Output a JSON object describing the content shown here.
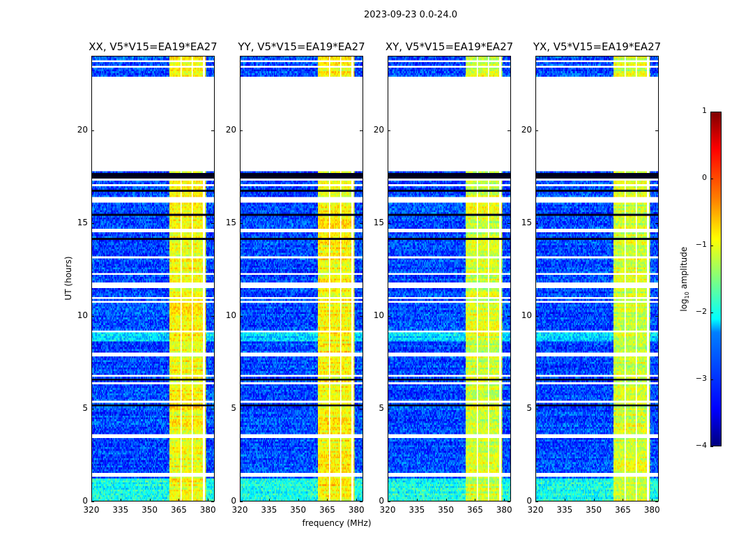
{
  "chart_data": {
    "type": "heatmap",
    "title": "2023-09-23 0.0-24.0",
    "xlabel": "frequency (MHz)",
    "ylabel": "UT (hours)",
    "xlim": [
      320,
      383.5
    ],
    "ylim": [
      0,
      24
    ],
    "xticks": [
      "320",
      "335",
      "350",
      "365",
      "380"
    ],
    "xtick_values": [
      320,
      335,
      350,
      365,
      380
    ],
    "yticks": [
      "0",
      "5",
      "10",
      "15",
      "20"
    ],
    "ytick_values": [
      0,
      5,
      10,
      15,
      20
    ],
    "panels": [
      {
        "title": "XX, V5*V15=EA19*EA27",
        "band_level": -0.9
      },
      {
        "title": "YY, V5*V15=EA19*EA27",
        "band_level": -0.85
      },
      {
        "title": "XY, V5*V15=EA19*EA27",
        "band_level": -1.1
      },
      {
        "title": "YX, V5*V15=EA19*EA27",
        "band_level": -1.1
      }
    ],
    "bright_band_mhz": [
      360,
      379.5
    ],
    "background_level": -3.2,
    "flagged_hours": [
      [
        17.8,
        22.9
      ],
      [
        16.1,
        16.4
      ],
      [
        14.5,
        14.7
      ],
      [
        11.5,
        11.8
      ],
      [
        1.3,
        1.5
      ],
      [
        3.4,
        3.55
      ],
      [
        23.4,
        23.5
      ],
      [
        7.9,
        8.0
      ]
    ],
    "colorbar": {
      "label": "log10 amplitude",
      "label_main": "log",
      "label_sub": "10",
      "label_tail": " amplitude",
      "ticks": [
        "1",
        "0",
        "−1",
        "−2",
        "−3",
        "−4"
      ],
      "tick_values": [
        1,
        0,
        -1,
        -2,
        -3,
        -4
      ],
      "range": [
        -4,
        1
      ],
      "colormap": "jet"
    }
  }
}
